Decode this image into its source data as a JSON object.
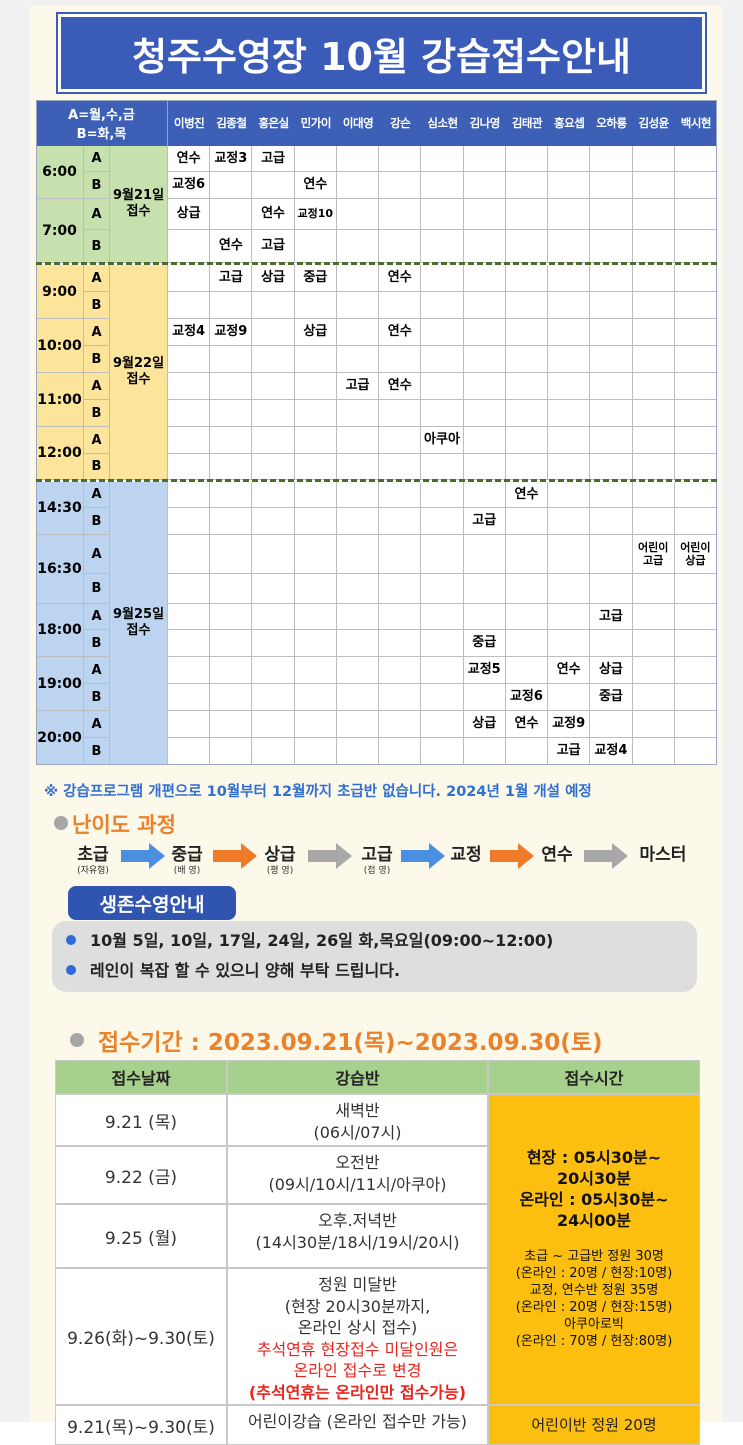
{
  "title": "청주수영장 10월 강습접수안내",
  "schedule": {
    "legend": [
      "A=월,수,금",
      "B=화,목"
    ],
    "instructors": [
      "이병진",
      "김종철",
      "홍은실",
      "민가이",
      "이대영",
      "강슨",
      "심소현",
      "김나영",
      "김태관",
      "홍요셉",
      "오하룡",
      "김성윤",
      "백시현"
    ],
    "groups": [
      {
        "date": "9월21일 접수",
        "slots": [
          {
            "time": "6:00",
            "rows": [
              {
                "label": "A",
                "cells": [
                  "연수",
                  "교정3",
                  "고급",
                  null,
                  null,
                  null,
                  null,
                  null,
                  null,
                  null,
                  null,
                  null,
                  null
                ]
              },
              {
                "label": "B",
                "cells": [
                  "교정6",
                  null,
                  null,
                  "연수",
                  null,
                  null,
                  null,
                  null,
                  null,
                  null,
                  null,
                  null,
                  null
                ]
              }
            ]
          },
          {
            "time": "7:00",
            "rows": [
              {
                "label": "A",
                "cells": [
                  "상급",
                  null,
                  "연수",
                  "교정10",
                  null,
                  null,
                  null,
                  null,
                  null,
                  null,
                  null,
                  null,
                  null
                ]
              },
              {
                "label": "B",
                "cells": [
                  null,
                  "연수",
                  "고급",
                  null,
                  null,
                  null,
                  null,
                  null,
                  null,
                  null,
                  null,
                  null,
                  null
                ]
              }
            ]
          }
        ]
      },
      {
        "date": "9월22일 접수",
        "slots": [
          {
            "time": "9:00",
            "rows": [
              {
                "label": "A",
                "cells": [
                  null,
                  "고급",
                  "상급",
                  "중급",
                  null,
                  "연수",
                  null,
                  null,
                  null,
                  null,
                  null,
                  null,
                  null
                ]
              },
              {
                "label": "B",
                "cells": [
                  null,
                  null,
                  null,
                  null,
                  null,
                  null,
                  null,
                  null,
                  null,
                  null,
                  null,
                  null,
                  null
                ]
              }
            ]
          },
          {
            "time": "10:00",
            "rows": [
              {
                "label": "A",
                "cells": [
                  "교정4",
                  "교정9",
                  null,
                  "상급",
                  null,
                  "연수",
                  null,
                  null,
                  null,
                  null,
                  null,
                  null,
                  null
                ]
              },
              {
                "label": "B",
                "cells": [
                  null,
                  null,
                  null,
                  null,
                  null,
                  null,
                  null,
                  null,
                  null,
                  null,
                  null,
                  null,
                  null
                ]
              }
            ]
          },
          {
            "time": "11:00",
            "rows": [
              {
                "label": "A",
                "cells": [
                  null,
                  null,
                  null,
                  null,
                  "고급",
                  "연수",
                  null,
                  null,
                  null,
                  null,
                  null,
                  null,
                  null
                ]
              },
              {
                "label": "B",
                "cells": [
                  null,
                  null,
                  null,
                  null,
                  null,
                  null,
                  null,
                  null,
                  null,
                  null,
                  null,
                  null,
                  null
                ]
              }
            ]
          },
          {
            "time": "12:00",
            "rows": [
              {
                "label": "A",
                "cells": [
                  null,
                  null,
                  null,
                  null,
                  null,
                  null,
                  "아쿠아",
                  null,
                  null,
                  null,
                  null,
                  null,
                  null
                ]
              },
              {
                "label": "B",
                "cells": [
                  null,
                  null,
                  null,
                  null,
                  null,
                  null,
                  null,
                  null,
                  null,
                  null,
                  null,
                  null,
                  null
                ]
              }
            ]
          }
        ]
      },
      {
        "date": "9월25일 접수",
        "slots": [
          {
            "time": "14:30",
            "rows": [
              {
                "label": "A",
                "cells": [
                  null,
                  null,
                  null,
                  null,
                  null,
                  null,
                  null,
                  null,
                  "연수",
                  null,
                  null,
                  null,
                  null
                ]
              },
              {
                "label": "B",
                "cells": [
                  null,
                  null,
                  null,
                  null,
                  null,
                  null,
                  null,
                  "고급",
                  null,
                  null,
                  null,
                  null,
                  null
                ]
              }
            ]
          },
          {
            "time": "16:30",
            "rows": [
              {
                "label": "A",
                "cells": [
                  null,
                  null,
                  null,
                  null,
                  null,
                  null,
                  null,
                  null,
                  null,
                  null,
                  null,
                  "어린이 고급",
                  "어린이 상급"
                ]
              },
              {
                "label": "B",
                "cells": [
                  null,
                  null,
                  null,
                  null,
                  null,
                  null,
                  null,
                  null,
                  null,
                  null,
                  null,
                  null,
                  null
                ]
              }
            ]
          },
          {
            "time": "18:00",
            "rows": [
              {
                "label": "A",
                "cells": [
                  null,
                  null,
                  null,
                  null,
                  null,
                  null,
                  null,
                  null,
                  null,
                  null,
                  "고급",
                  null,
                  null
                ]
              },
              {
                "label": "B",
                "cells": [
                  null,
                  null,
                  null,
                  null,
                  null,
                  null,
                  null,
                  "중급",
                  null,
                  null,
                  null,
                  null,
                  null
                ]
              }
            ]
          },
          {
            "time": "19:00",
            "rows": [
              {
                "label": "A",
                "cells": [
                  null,
                  null,
                  null,
                  null,
                  null,
                  null,
                  null,
                  "교정5",
                  null,
                  "연수",
                  "상급",
                  null,
                  null
                ]
              },
              {
                "label": "B",
                "cells": [
                  null,
                  null,
                  null,
                  null,
                  null,
                  null,
                  null,
                  null,
                  "교정6",
                  null,
                  "중급",
                  null,
                  null
                ]
              }
            ]
          },
          {
            "time": "20:00",
            "rows": [
              {
                "label": "A",
                "cells": [
                  null,
                  null,
                  null,
                  null,
                  null,
                  null,
                  null,
                  "상급",
                  "연수",
                  "교정9",
                  null,
                  null,
                  null
                ]
              },
              {
                "label": "B",
                "cells": [
                  null,
                  null,
                  null,
                  null,
                  null,
                  null,
                  null,
                  null,
                  null,
                  "고급",
                  "교정4",
                  null,
                  null
                ]
              }
            ]
          }
        ]
      }
    ]
  },
  "notice": "※ 강습프로그램 개편으로 10월부터 12월까지 초급반 없습니다.  2024년 1월 개설 예정",
  "difficulty": {
    "title": "난이도 과정",
    "steps": [
      {
        "name": "초급",
        "sub": "(자유형)"
      },
      {
        "name": "중급",
        "sub": "(배 영)"
      },
      {
        "name": "상급",
        "sub": "(평 영)"
      },
      {
        "name": "고급",
        "sub": "(접 영)"
      },
      {
        "name": "교정"
      },
      {
        "name": "연수"
      },
      {
        "name": "마스터"
      }
    ]
  },
  "survival": {
    "title": "생존수영안내",
    "items": [
      "10월 5일, 10일, 17일, 24일, 26일 화,목요일(09:00~12:00)",
      "레인이 복잡 할 수 있으니 양해 부탁 드립니다."
    ]
  },
  "registration": {
    "title": "접수기간 : 2023.09.21(목)~2023.09.30(토)",
    "headers": [
      "접수날짜",
      "강습반",
      "접수시간"
    ],
    "rows": [
      {
        "date": "9.21 (목)",
        "class": [
          "새벽반",
          "(06시/07시)"
        ]
      },
      {
        "date": "9.22 (금)",
        "class": [
          "오전반",
          "(09시/10시/11시/아쿠아)"
        ]
      },
      {
        "date": "9.25 (월)",
        "class": [
          "오후.저녁반",
          "(14시30분/18시/19시/20시)"
        ]
      },
      {
        "date": "9.26(화)~9.30(토)",
        "class": [
          "정원 미달반",
          "(현장 20시30분까지,",
          "온라인 상시 접수)"
        ],
        "notice": [
          "추석연휴  현장접수 미달인원은",
          "온라인 접수로 변경"
        ],
        "emphasis": "(추석연휴는 온라인만 접수가능)"
      },
      {
        "date": "9.21(목)~9.30(토)",
        "class": [
          "어린이강습 (온라인 접수만 가능)"
        ],
        "time": "어린이반 정원 20명"
      }
    ],
    "time": {
      "main": [
        "현장 : 05시30분~",
        "20시30분",
        "온라인 : 05시30분~",
        "24시00분"
      ],
      "detail": [
        "초급 ~ 고급반 정원 30명",
        "(온라인 : 20명 / 현장:10명)",
        "교정, 연수반 정원 35명",
        "(온라인 : 20명 / 현장:15명)",
        "아쿠아로빅",
        "(온라인 : 70명 / 현장:80명)"
      ]
    }
  }
}
